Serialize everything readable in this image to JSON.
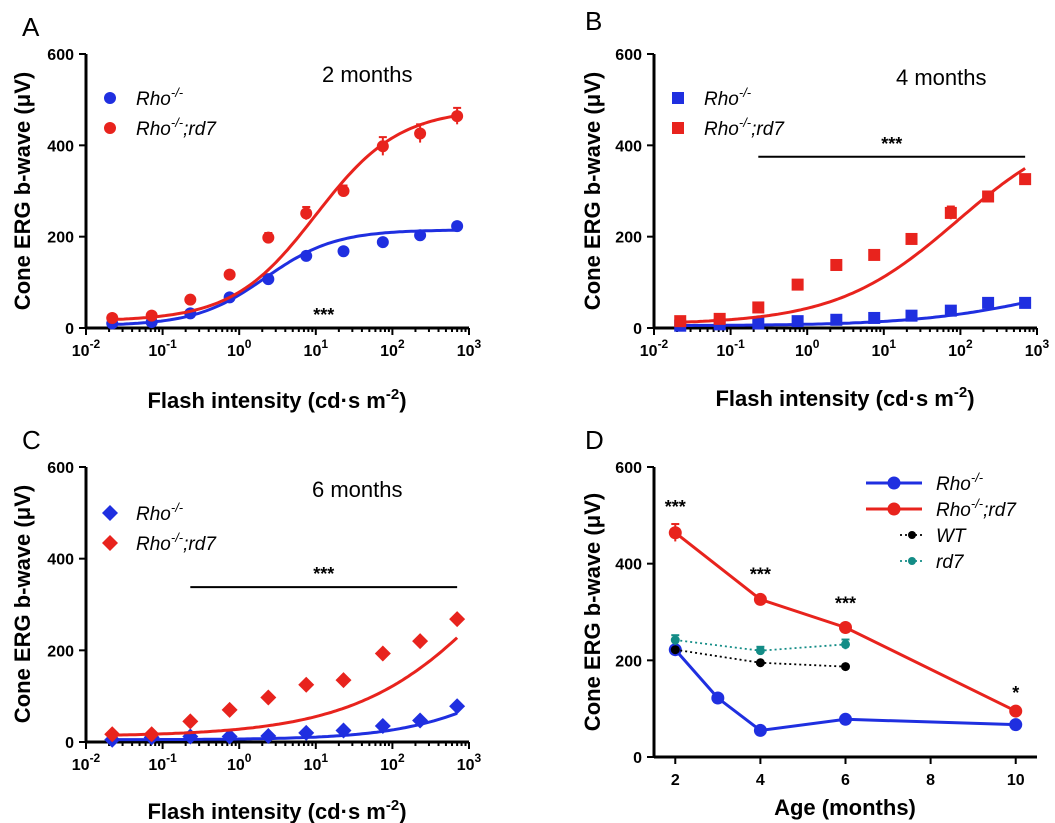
{
  "chart_data": [
    {
      "panel": "A",
      "type": "scatter",
      "annotation": "2 months",
      "xlabel": "Flash intensity (cd·s m",
      "xlabel_sup": "-2",
      "xlabel_end": ")",
      "ylabel": "Cone ERG b-wave (μV)",
      "xscale": "log",
      "xlim": [
        0.01,
        1000
      ],
      "ylim": [
        0,
        600
      ],
      "yticks": [
        0,
        200,
        400,
        600
      ],
      "xticks": [
        {
          "value": 0.01,
          "base": "10",
          "exp": "-2"
        },
        {
          "value": 0.1,
          "base": "10",
          "exp": "-1"
        },
        {
          "value": 1,
          "base": "10",
          "exp": "0"
        },
        {
          "value": 10,
          "base": "10",
          "exp": "1"
        },
        {
          "value": 100,
          "base": "10",
          "exp": "2"
        },
        {
          "value": 1000,
          "base": "10",
          "exp": "3"
        }
      ],
      "marker": "circle",
      "legend_position": "top-left",
      "significance": {
        "label": "***",
        "x_start": 0.23,
        "x_end": 700,
        "y": 0
      },
      "series": [
        {
          "name_parts": [
            "Rho",
            "-/-",
            ""
          ],
          "color": "#1f2fe0",
          "x": [
            0.022,
            0.072,
            0.23,
            0.75,
            2.4,
            7.5,
            23,
            75,
            230,
            700
          ],
          "y": [
            10,
            13,
            32,
            67,
            107,
            158,
            168,
            188,
            203,
            223
          ],
          "err": [
            0,
            0,
            0,
            0,
            0,
            6,
            6,
            0,
            0,
            0
          ],
          "fit": {
            "bottom": 5,
            "top": 215,
            "ec50": 2.2,
            "hill": 0.95
          }
        },
        {
          "name_parts": [
            "Rho",
            "-/-",
            ";rd7"
          ],
          "color": "#e8231d",
          "x": [
            0.022,
            0.072,
            0.23,
            0.75,
            2.4,
            7.5,
            23,
            75,
            230,
            700
          ],
          "y": [
            22,
            27,
            62,
            117,
            198,
            251,
            300,
            398,
            426,
            464
          ],
          "err": [
            0,
            0,
            0,
            0,
            10,
            14,
            12,
            20,
            20,
            18
          ],
          "fit": {
            "bottom": 15,
            "top": 480,
            "ec50": 10,
            "hill": 0.8
          }
        }
      ]
    },
    {
      "panel": "B",
      "type": "scatter",
      "annotation": "4 months",
      "xlabel": "Flash intensity (cd·s m",
      "xlabel_sup": "-2",
      "xlabel_end": ")",
      "ylabel": "Cone ERG b-wave (μV)",
      "xscale": "log",
      "xlim": [
        0.01,
        1000
      ],
      "ylim": [
        0,
        600
      ],
      "yticks": [
        0,
        200,
        400,
        600
      ],
      "xticks": [
        {
          "value": 0.01,
          "base": "10",
          "exp": "-2"
        },
        {
          "value": 0.1,
          "base": "10",
          "exp": "-1"
        },
        {
          "value": 1,
          "base": "10",
          "exp": "0"
        },
        {
          "value": 10,
          "base": "10",
          "exp": "1"
        },
        {
          "value": 100,
          "base": "10",
          "exp": "2"
        },
        {
          "value": 1000,
          "base": "10",
          "exp": "3"
        }
      ],
      "marker": "square",
      "legend_position": "top-left",
      "significance": {
        "label": "***",
        "x_start": 0.23,
        "x_end": 700,
        "y": 375
      },
      "series": [
        {
          "name_parts": [
            "Rho",
            "-/-",
            ""
          ],
          "color": "#1f2fe0",
          "x": [
            0.022,
            0.072,
            0.23,
            0.75,
            2.4,
            7.5,
            23,
            75,
            230,
            700
          ],
          "y": [
            5,
            8,
            10,
            15,
            18,
            22,
            27,
            38,
            55,
            55
          ],
          "err": [
            0,
            0,
            0,
            0,
            0,
            0,
            0,
            0,
            0,
            0
          ],
          "fit": {
            "bottom": 5,
            "top": 130,
            "ec50": 1500,
            "hill": 0.5
          }
        },
        {
          "name_parts": [
            "Rho",
            "-/-",
            ";rd7"
          ],
          "color": "#e8231d",
          "x": [
            0.022,
            0.072,
            0.23,
            0.75,
            2.4,
            7.5,
            23,
            75,
            230,
            700
          ],
          "y": [
            15,
            20,
            45,
            95,
            138,
            160,
            195,
            252,
            288,
            326
          ],
          "err": [
            0,
            0,
            0,
            0,
            6,
            8,
            8,
            14,
            8,
            6
          ],
          "fit": {
            "bottom": 8,
            "top": 460,
            "ec50": 90,
            "hill": 0.55
          }
        }
      ]
    },
    {
      "panel": "C",
      "type": "scatter",
      "annotation": "6 months",
      "xlabel": "Flash intensity (cd·s m",
      "xlabel_sup": "-2",
      "xlabel_end": ")",
      "ylabel": "Cone ERG b-wave (μV)",
      "xscale": "log",
      "xlim": [
        0.01,
        1000
      ],
      "ylim": [
        0,
        600
      ],
      "yticks": [
        0,
        200,
        400,
        600
      ],
      "xticks": [
        {
          "value": 0.01,
          "base": "10",
          "exp": "-2"
        },
        {
          "value": 0.1,
          "base": "10",
          "exp": "-1"
        },
        {
          "value": 1,
          "base": "10",
          "exp": "0"
        },
        {
          "value": 10,
          "base": "10",
          "exp": "1"
        },
        {
          "value": 100,
          "base": "10",
          "exp": "2"
        },
        {
          "value": 1000,
          "base": "10",
          "exp": "3"
        }
      ],
      "marker": "diamond",
      "legend_position": "top-left",
      "significance": {
        "label": "***",
        "x_start": 0.23,
        "x_end": 700,
        "y": 338
      },
      "series": [
        {
          "name_parts": [
            "Rho",
            "-/-",
            ""
          ],
          "color": "#1f2fe0",
          "x": [
            0.022,
            0.072,
            0.23,
            0.75,
            2.4,
            7.5,
            23,
            75,
            230,
            700
          ],
          "y": [
            5,
            10,
            12,
            12,
            13,
            20,
            25,
            35,
            47,
            78
          ],
          "err": [
            0,
            0,
            0,
            0,
            0,
            0,
            0,
            0,
            0,
            0
          ],
          "fit": {
            "bottom": 5,
            "top": 250,
            "ec50": 5000,
            "hill": 0.6
          }
        },
        {
          "name_parts": [
            "Rho",
            "-/-",
            ";rd7"
          ],
          "color": "#e8231d",
          "x": [
            0.022,
            0.072,
            0.23,
            0.75,
            2.4,
            7.5,
            23,
            75,
            230,
            700
          ],
          "y": [
            17,
            17,
            45,
            70,
            97,
            125,
            135,
            193,
            220,
            268
          ],
          "err": [
            0,
            0,
            0,
            0,
            0,
            0,
            0,
            0,
            0,
            0
          ],
          "fit": {
            "bottom": 12,
            "top": 700,
            "ec50": 4000,
            "hill": 0.45
          }
        }
      ]
    },
    {
      "panel": "D",
      "type": "line",
      "xlabel": "Age (months)",
      "ylabel": "Cone ERG b-wave (μV)",
      "xscale": "linear",
      "xlim": [
        1.5,
        10.5
      ],
      "ylim": [
        0,
        600
      ],
      "yticks": [
        0,
        200,
        400,
        600
      ],
      "xticks": [
        {
          "value": 2,
          "label": "2"
        },
        {
          "value": 4,
          "label": "4"
        },
        {
          "value": 6,
          "label": "6"
        },
        {
          "value": 8,
          "label": "8"
        },
        {
          "value": 10,
          "label": "10"
        }
      ],
      "legend_position": "top-right",
      "significance_labels": [
        {
          "x": 2,
          "y": 505,
          "label": "***"
        },
        {
          "x": 4,
          "y": 365,
          "label": "***"
        },
        {
          "x": 6,
          "y": 305,
          "label": "***"
        },
        {
          "x": 10,
          "y": 120,
          "label": "*"
        }
      ],
      "series": [
        {
          "name_parts": [
            "Rho",
            "-/-",
            ""
          ],
          "italic": true,
          "color": "#1f2fe0",
          "style": "solid",
          "x": [
            2,
            3,
            4,
            6,
            10
          ],
          "y": [
            222,
            122,
            55,
            78,
            67
          ],
          "err": [
            0,
            0,
            0,
            0,
            0
          ]
        },
        {
          "name_parts": [
            "Rho",
            "-/-",
            ";rd7"
          ],
          "italic": true,
          "color": "#e8231d",
          "style": "solid",
          "x": [
            2,
            4,
            6,
            10
          ],
          "y": [
            464,
            326,
            268,
            95
          ],
          "err": [
            18,
            6,
            8,
            6
          ]
        },
        {
          "name_parts": [
            "WT",
            "",
            ""
          ],
          "italic": false,
          "color": "#000000",
          "style": "dotted",
          "x": [
            2,
            4,
            6
          ],
          "y": [
            222,
            195,
            187
          ],
          "err": [
            0,
            0,
            0
          ]
        },
        {
          "name_parts": [
            "rd7",
            "",
            ""
          ],
          "italic": true,
          "color": "#138c86",
          "style": "dotted",
          "x": [
            2,
            4,
            6
          ],
          "y": [
            242,
            220,
            233
          ],
          "err": [
            10,
            8,
            10
          ]
        }
      ]
    }
  ]
}
